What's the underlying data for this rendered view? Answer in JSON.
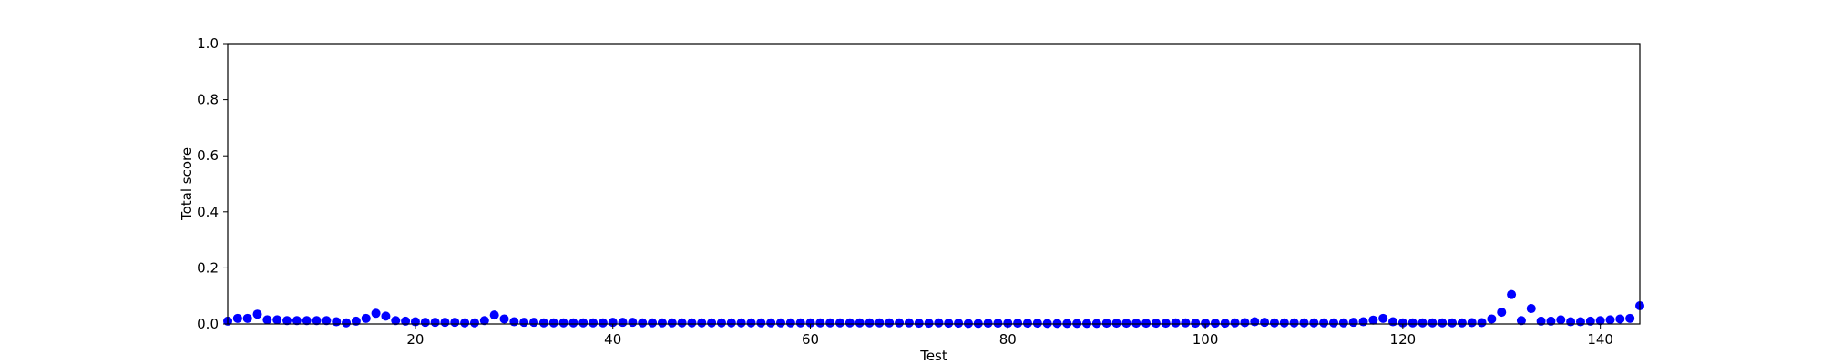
{
  "chart_data": {
    "type": "scatter",
    "title": "",
    "xlabel": "Test",
    "ylabel": "Total score",
    "xlim": [
      1,
      144
    ],
    "ylim": [
      0,
      1
    ],
    "x_ticks": [
      20,
      40,
      60,
      80,
      100,
      120,
      140
    ],
    "y_ticks": [
      0.0,
      0.2,
      0.4,
      0.6,
      0.8,
      1.0
    ],
    "y_tick_labels": [
      "0.0",
      "0.2",
      "0.4",
      "0.6",
      "0.8",
      "1.0"
    ],
    "grid": false,
    "marker_color": "#0000ff",
    "series": [
      {
        "x": [
          1,
          2,
          3,
          4,
          5,
          6,
          7,
          8,
          9,
          10,
          11,
          12,
          13,
          14,
          15,
          16,
          17,
          18,
          19,
          20,
          21,
          22,
          23,
          24,
          25,
          26,
          27,
          28,
          29,
          30,
          31,
          32,
          33,
          34,
          35,
          36,
          37,
          38,
          39,
          40,
          41,
          42,
          43,
          44,
          45,
          46,
          47,
          48,
          49,
          50,
          51,
          52,
          53,
          54,
          55,
          56,
          57,
          58,
          59,
          60,
          61,
          62,
          63,
          64,
          65,
          66,
          67,
          68,
          69,
          70,
          71,
          72,
          73,
          74,
          75,
          76,
          77,
          78,
          79,
          80,
          81,
          82,
          83,
          84,
          85,
          86,
          87,
          88,
          89,
          90,
          91,
          92,
          93,
          94,
          95,
          96,
          97,
          98,
          99,
          100,
          101,
          102,
          103,
          104,
          105,
          106,
          107,
          108,
          109,
          110,
          111,
          112,
          113,
          114,
          115,
          116,
          117,
          118,
          119,
          120,
          121,
          122,
          123,
          124,
          125,
          126,
          127,
          128,
          129,
          130,
          131,
          132,
          133,
          134,
          135,
          136,
          137,
          138,
          139,
          140,
          141,
          142,
          143,
          144
        ],
        "y": [
          0.01,
          0.02,
          0.02,
          0.035,
          0.015,
          0.015,
          0.012,
          0.012,
          0.012,
          0.012,
          0.012,
          0.008,
          0.004,
          0.01,
          0.02,
          0.038,
          0.028,
          0.012,
          0.01,
          0.008,
          0.006,
          0.006,
          0.006,
          0.006,
          0.004,
          0.004,
          0.012,
          0.032,
          0.018,
          0.008,
          0.006,
          0.006,
          0.004,
          0.004,
          0.004,
          0.004,
          0.004,
          0.004,
          0.004,
          0.006,
          0.006,
          0.006,
          0.004,
          0.004,
          0.004,
          0.004,
          0.004,
          0.004,
          0.004,
          0.004,
          0.004,
          0.004,
          0.004,
          0.004,
          0.004,
          0.004,
          0.004,
          0.004,
          0.004,
          0.004,
          0.004,
          0.004,
          0.004,
          0.004,
          0.004,
          0.004,
          0.004,
          0.004,
          0.004,
          0.004,
          0.003,
          0.003,
          0.004,
          0.003,
          0.003,
          0.002,
          0.002,
          0.003,
          0.003,
          0.003,
          0.003,
          0.003,
          0.003,
          0.002,
          0.002,
          0.002,
          0.002,
          0.002,
          0.002,
          0.003,
          0.003,
          0.003,
          0.003,
          0.003,
          0.003,
          0.003,
          0.004,
          0.004,
          0.003,
          0.003,
          0.003,
          0.003,
          0.004,
          0.005,
          0.008,
          0.006,
          0.004,
          0.004,
          0.004,
          0.004,
          0.004,
          0.004,
          0.004,
          0.004,
          0.006,
          0.008,
          0.014,
          0.02,
          0.008,
          0.004,
          0.004,
          0.004,
          0.004,
          0.004,
          0.004,
          0.004,
          0.005,
          0.005,
          0.018,
          0.042,
          0.105,
          0.012,
          0.055,
          0.01,
          0.01,
          0.015,
          0.008,
          0.008,
          0.01,
          0.012,
          0.015,
          0.018,
          0.02,
          0.065
        ]
      }
    ]
  }
}
